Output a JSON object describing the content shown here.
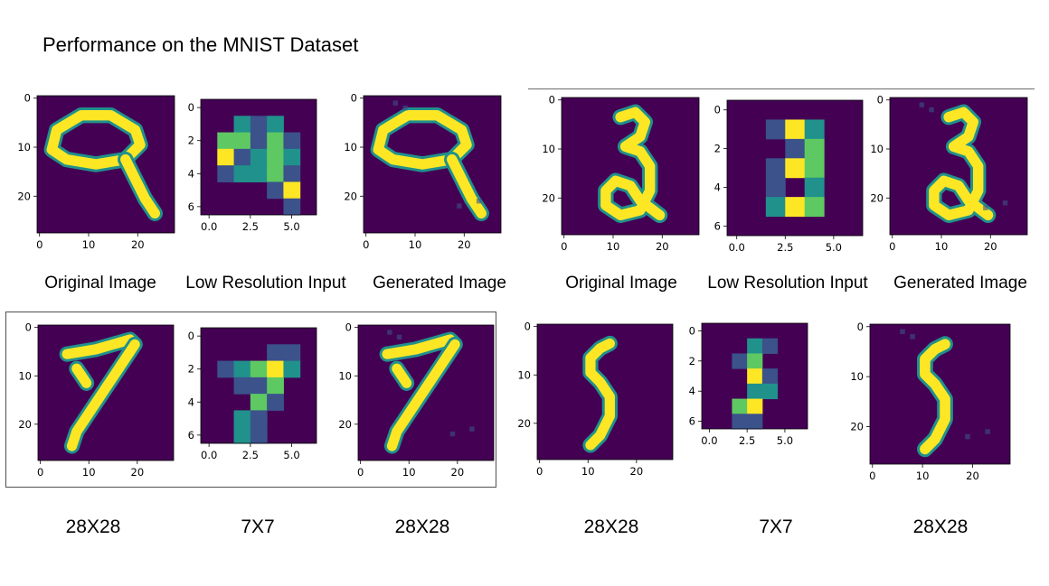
{
  "title": "Performance on the MNIST Dataset",
  "panels": [
    {
      "captions": [
        "Original Image",
        "Low Resolution Input",
        "Generated Image"
      ],
      "plots": [
        {
          "digit": "9",
          "view": "high",
          "xticks": [
            "0",
            "10",
            "20"
          ],
          "yticks": [
            "0",
            "10",
            "20"
          ]
        },
        {
          "digit": "9",
          "view": "low",
          "xticks": [
            "0.0",
            "2.5",
            "5.0"
          ],
          "yticks": [
            "0",
            "2",
            "4",
            "6"
          ]
        },
        {
          "digit": "9",
          "view": "gen",
          "xticks": [
            "0",
            "10",
            "20"
          ],
          "yticks": [
            "0",
            "10",
            "20"
          ]
        }
      ]
    },
    {
      "captions": [
        "Original Image",
        "Low Resolution Input",
        "Generated Image"
      ],
      "plots": [
        {
          "digit": "3",
          "view": "high",
          "xticks": [
            "0",
            "10",
            "20"
          ],
          "yticks": [
            "0",
            "10",
            "20"
          ]
        },
        {
          "digit": "3",
          "view": "low",
          "xticks": [
            "0.0",
            "2.5",
            "5.0"
          ],
          "yticks": [
            "0",
            "2",
            "4",
            "6"
          ]
        },
        {
          "digit": "3",
          "view": "gen",
          "xticks": [
            "0",
            "10",
            "20"
          ],
          "yticks": [
            "0",
            "10",
            "20"
          ]
        }
      ]
    },
    {
      "sizes": [
        "28X28",
        "7X7",
        "28X28"
      ],
      "plots": [
        {
          "digit": "7",
          "view": "high",
          "xticks": [
            "0",
            "10",
            "20"
          ],
          "yticks": [
            "0",
            "10",
            "20"
          ]
        },
        {
          "digit": "7",
          "view": "low",
          "xticks": [
            "0.0",
            "2.5",
            "5.0"
          ],
          "yticks": [
            "0",
            "2",
            "4",
            "6"
          ]
        },
        {
          "digit": "7",
          "view": "gen",
          "xticks": [
            "0",
            "10",
            "20"
          ],
          "yticks": [
            "0",
            "10",
            "20"
          ]
        }
      ]
    },
    {
      "sizes": [
        "28X28",
        "7X7",
        "28X28"
      ],
      "plots": [
        {
          "digit": "5",
          "view": "high",
          "xticks": [
            "0",
            "10",
            "20"
          ],
          "yticks": [
            "0",
            "10",
            "20"
          ]
        },
        {
          "digit": "5",
          "view": "low",
          "xticks": [
            "0.0",
            "2.5",
            "5.0"
          ],
          "yticks": [
            "0",
            "2",
            "4",
            "6"
          ]
        },
        {
          "digit": "5",
          "view": "gen",
          "xticks": [
            "0",
            "10",
            "20"
          ],
          "yticks": [
            "0",
            "10",
            "20"
          ]
        }
      ]
    }
  ],
  "colors": {
    "background": "#440154",
    "mid_dark": "#3b528b",
    "mid": "#21918c",
    "mid_light": "#5ec962",
    "bright": "#fde725"
  }
}
